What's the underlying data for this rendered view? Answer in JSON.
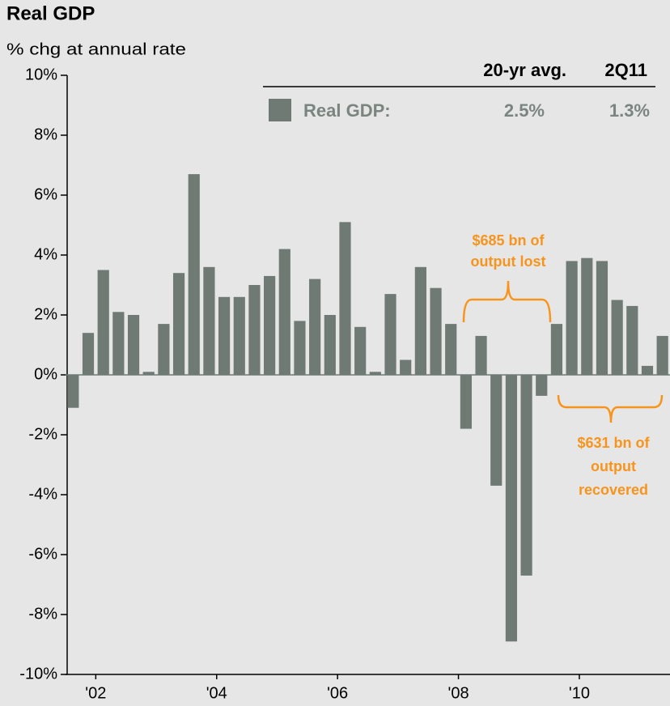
{
  "chart_data": {
    "type": "bar",
    "title": "Real GDP",
    "subtitle": "% chg at annual rate",
    "categories": [
      null,
      null,
      "'02",
      null,
      null,
      null,
      null,
      null,
      null,
      null,
      "'04",
      null,
      null,
      null,
      null,
      null,
      null,
      null,
      "'06",
      null,
      null,
      null,
      null,
      null,
      null,
      null,
      "'08",
      null,
      null,
      null,
      null,
      null,
      null,
      null,
      "'10",
      null,
      null,
      null,
      null,
      null
    ],
    "series": [
      {
        "name": "Real GDP:",
        "color": "#6f7a75",
        "values": [
          -1.1,
          1.4,
          3.5,
          2.1,
          2.0,
          0.1,
          1.7,
          3.4,
          6.7,
          3.6,
          2.6,
          2.6,
          3.0,
          3.3,
          4.2,
          1.8,
          3.2,
          2.0,
          5.1,
          1.6,
          0.1,
          2.7,
          0.5,
          3.6,
          2.9,
          1.7,
          -1.8,
          1.3,
          -3.7,
          -8.9,
          -6.7,
          -0.7,
          1.7,
          3.8,
          3.9,
          3.8,
          2.5,
          2.3,
          0.3,
          1.3
        ]
      }
    ],
    "ylim": [
      -10,
      10
    ],
    "yticks": [
      {
        "value": -10,
        "label": "-10%"
      },
      {
        "value": -8,
        "label": "-8%"
      },
      {
        "value": -6,
        "label": "-6%"
      },
      {
        "value": -4,
        "label": "-4%"
      },
      {
        "value": -2,
        "label": "-2%"
      },
      {
        "value": 0,
        "label": "0%"
      },
      {
        "value": 2,
        "label": "2%"
      },
      {
        "value": 4,
        "label": "4%"
      },
      {
        "value": 6,
        "label": "6%"
      },
      {
        "value": 8,
        "label": "8%"
      },
      {
        "value": 10,
        "label": "10%"
      }
    ],
    "legend_table": {
      "headers": [
        "20-yr avg.",
        "2Q11"
      ],
      "values": [
        "2.5%",
        "1.3%"
      ]
    },
    "annotations": [
      {
        "lines": [
          "$685 bn of",
          "output lost"
        ]
      },
      {
        "lines": [
          "$631 bn of",
          "output",
          "recovered"
        ]
      }
    ]
  }
}
